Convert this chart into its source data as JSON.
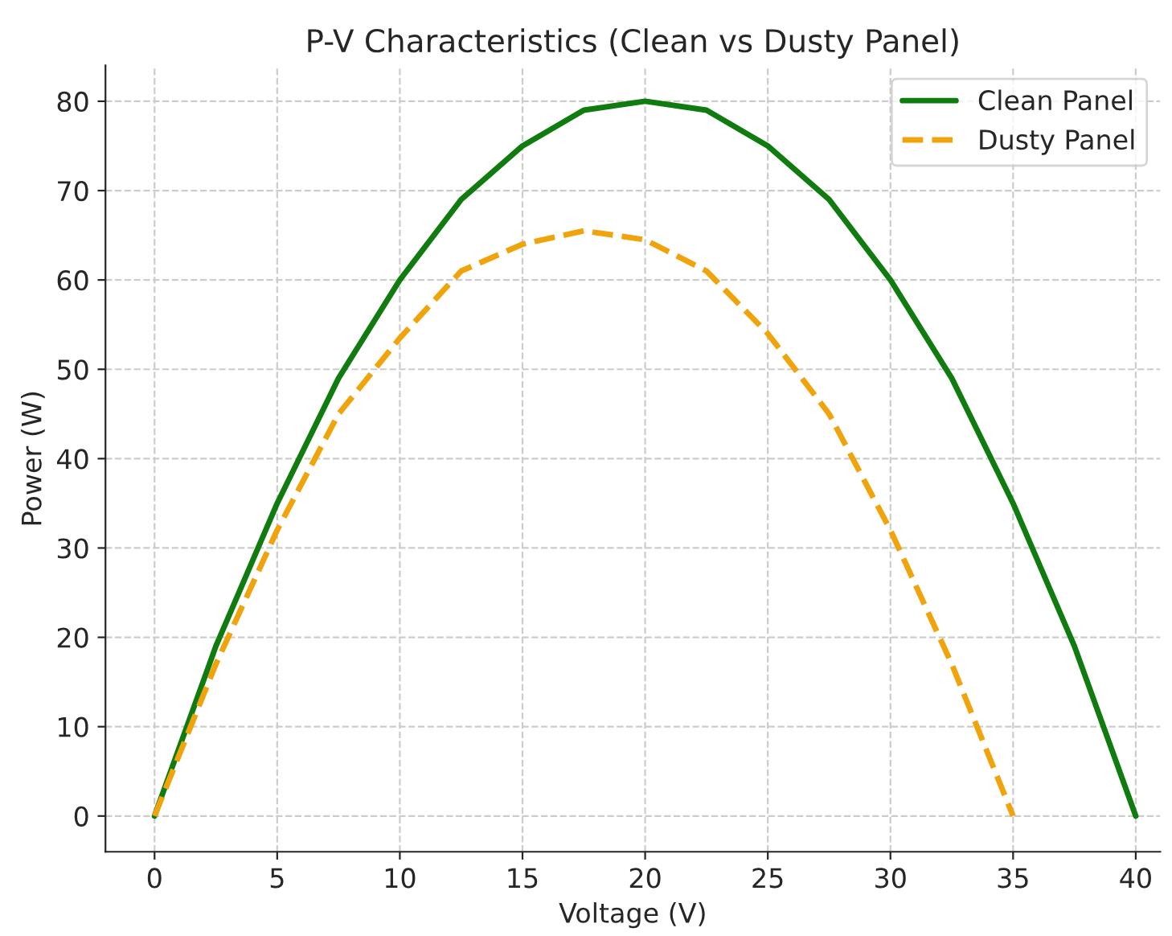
{
  "chart_data": {
    "type": "line",
    "title": "P-V Characteristics (Clean vs Dusty Panel)",
    "xlabel": "Voltage (V)",
    "ylabel": "Power (W)",
    "series": [
      {
        "name": "Clean Panel",
        "color": "#107c10",
        "line_style": "solid",
        "x": [
          0,
          2.5,
          5,
          7.5,
          10,
          12.5,
          15,
          17.5,
          20,
          22.5,
          25,
          27.5,
          30,
          32.5,
          35,
          37.5,
          40
        ],
        "values": [
          0,
          19,
          35,
          49,
          60,
          69,
          75,
          79,
          80,
          79,
          75,
          69,
          60,
          49,
          35,
          19,
          0
        ]
      },
      {
        "name": "Dusty Panel",
        "color": "#f0a30a",
        "line_style": "dashed",
        "x": [
          0,
          2.5,
          5,
          7.5,
          10,
          12.5,
          15,
          17.5,
          20,
          22.5,
          25,
          27.5,
          30,
          32.5,
          35
        ],
        "values": [
          0,
          17,
          32,
          45,
          53.5,
          61,
          64,
          65.5,
          64.5,
          61,
          54,
          45,
          32,
          17,
          0
        ]
      }
    ],
    "xlim": [
      -2,
      41
    ],
    "ylim": [
      -4,
      84
    ],
    "xticks": [
      0,
      5,
      10,
      15,
      20,
      25,
      30,
      35,
      40
    ],
    "yticks": [
      0,
      10,
      20,
      30,
      40,
      50,
      60,
      70,
      80
    ],
    "grid": true,
    "legend": "top right"
  }
}
